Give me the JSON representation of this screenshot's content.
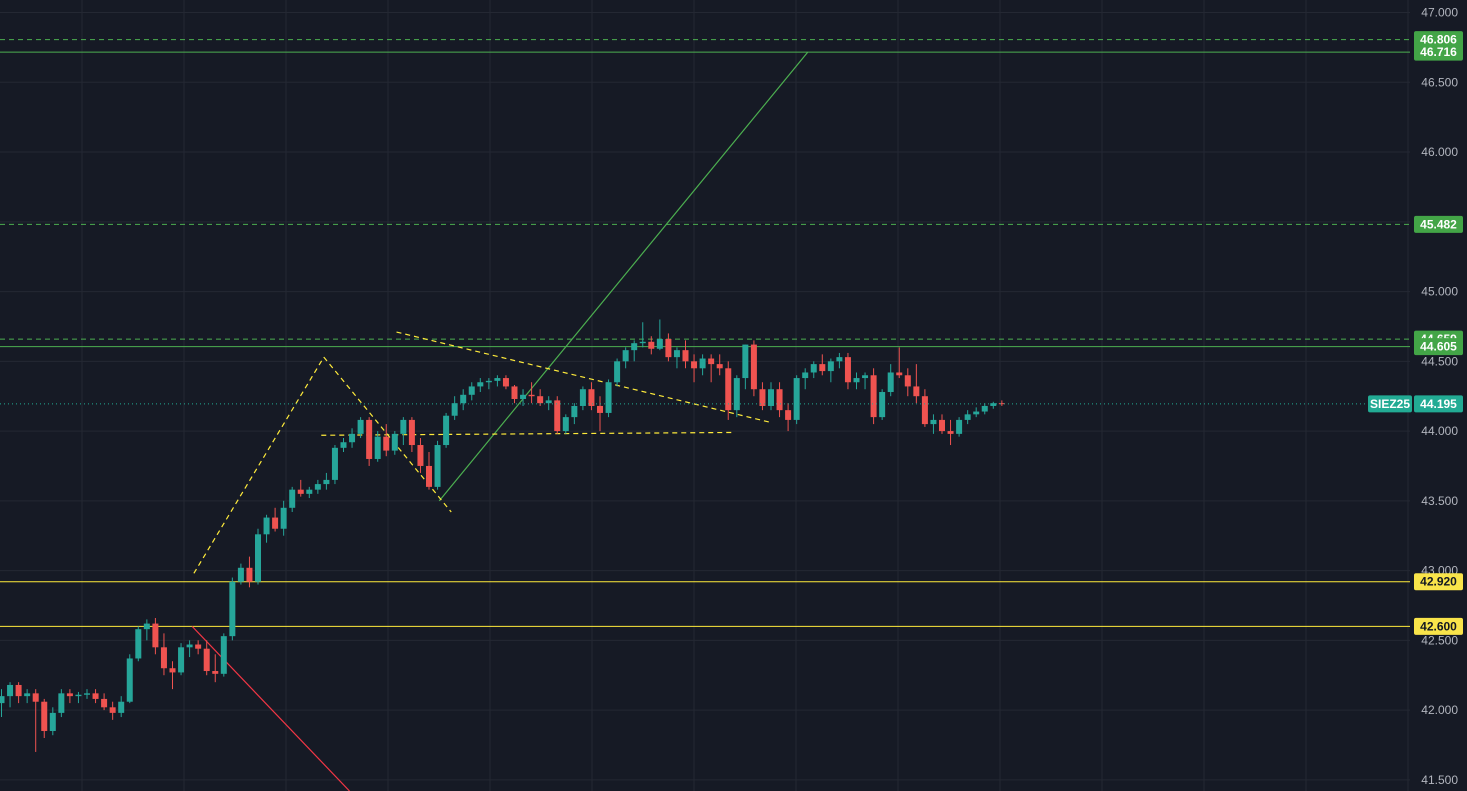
{
  "chart_data": {
    "type": "candlestick",
    "symbol": "SIEZ25",
    "last_price": 44195,
    "last_price_label": "44.195",
    "ylim": [
      41420,
      47090
    ],
    "grid": true,
    "colors": {
      "background": "#161a25",
      "grid": "#242833",
      "up": "#26a69a",
      "down": "#ef5350",
      "green_line": "#4caf50",
      "yellow_line": "#ffeb3b",
      "red_line": "#f23645",
      "price_badge": "#22ab94",
      "axis_text": "#b2b5be"
    },
    "y_ticks": [
      {
        "value": 47000,
        "label": "47.000"
      },
      {
        "value": 46500,
        "label": "46.500"
      },
      {
        "value": 46000,
        "label": "46.000"
      },
      {
        "value": 45500,
        "label": "45.500"
      },
      {
        "value": 45000,
        "label": "45.000"
      },
      {
        "value": 44500,
        "label": "44.500"
      },
      {
        "value": 44000,
        "label": "44.000"
      },
      {
        "value": 43500,
        "label": "43.500"
      },
      {
        "value": 43000,
        "label": "43.000"
      },
      {
        "value": 42500,
        "label": "42.500"
      },
      {
        "value": 42000,
        "label": "42.000"
      },
      {
        "value": 41500,
        "label": "41.500"
      }
    ],
    "levels": [
      {
        "value": 46806,
        "label": "46.806",
        "color": "green",
        "style": "dashed"
      },
      {
        "value": 46716,
        "label": "46.716",
        "color": "green",
        "style": "solid"
      },
      {
        "value": 45482,
        "label": "45.482",
        "color": "green",
        "style": "dashed"
      },
      {
        "value": 44659,
        "label": "44.659",
        "color": "green",
        "style": "dashed"
      },
      {
        "value": 44605,
        "label": "44.605",
        "color": "green",
        "style": "solid"
      },
      {
        "value": 42920,
        "label": "42.920",
        "color": "yellow",
        "style": "solid"
      },
      {
        "value": 42600,
        "label": "42.600",
        "color": "yellow",
        "style": "solid"
      }
    ],
    "trendlines": [
      {
        "color": "green",
        "style": "solid",
        "from": [
          51.2,
          43500
        ],
        "to": [
          94.3,
          46716
        ]
      },
      {
        "color": "yellow",
        "style": "dashed",
        "from": [
          22.5,
          42980
        ],
        "to": [
          37.7,
          44530
        ]
      },
      {
        "color": "yellow",
        "style": "dashed",
        "from": [
          37.7,
          44530
        ],
        "to": [
          52.6,
          43420
        ]
      },
      {
        "color": "yellow",
        "style": "dashed",
        "from": [
          46.2,
          44710
        ],
        "to": [
          90.1,
          44060
        ]
      },
      {
        "color": "yellow",
        "style": "dashed",
        "from": [
          37.4,
          43970
        ],
        "to": [
          85.6,
          43990
        ]
      },
      {
        "color": "red",
        "style": "solid",
        "from": [
          22.3,
          42600
        ],
        "to": [
          40.7,
          41420
        ]
      }
    ],
    "candles": [
      [
        42050,
        42150,
        41950,
        42100
      ],
      [
        42100,
        42200,
        42020,
        42180
      ],
      [
        42180,
        42200,
        42050,
        42100
      ],
      [
        42100,
        42150,
        42050,
        42120
      ],
      [
        42120,
        42150,
        41700,
        42060
      ],
      [
        42060,
        42080,
        41800,
        41850
      ],
      [
        41850,
        42020,
        41820,
        41980
      ],
      [
        41980,
        42150,
        41950,
        42120
      ],
      [
        42120,
        42150,
        42050,
        42100
      ],
      [
        42100,
        42130,
        42050,
        42110
      ],
      [
        42110,
        42150,
        42080,
        42120
      ],
      [
        42120,
        42150,
        42050,
        42080
      ],
      [
        42080,
        42120,
        42000,
        42020
      ],
      [
        42020,
        42060,
        41930,
        41980
      ],
      [
        41980,
        42100,
        41950,
        42060
      ],
      [
        42060,
        42400,
        42050,
        42370
      ],
      [
        42370,
        42600,
        42350,
        42580
      ],
      [
        42580,
        42650,
        42500,
        42620
      ],
      [
        42620,
        42660,
        42400,
        42450
      ],
      [
        42450,
        42550,
        42250,
        42300
      ],
      [
        42300,
        42350,
        42150,
        42270
      ],
      [
        42270,
        42480,
        42250,
        42450
      ],
      [
        42450,
        42500,
        42380,
        42470
      ],
      [
        42470,
        42500,
        42400,
        42440
      ],
      [
        42440,
        42500,
        42250,
        42280
      ],
      [
        42280,
        42400,
        42200,
        42260
      ],
      [
        42260,
        42550,
        42240,
        42530
      ],
      [
        42530,
        42950,
        42500,
        42920
      ],
      [
        42920,
        43050,
        42900,
        43020
      ],
      [
        43020,
        43100,
        42880,
        42920
      ],
      [
        42920,
        43300,
        42900,
        43260
      ],
      [
        43260,
        43400,
        43200,
        43380
      ],
      [
        43380,
        43450,
        43280,
        43300
      ],
      [
        43300,
        43500,
        43250,
        43450
      ],
      [
        43450,
        43600,
        43420,
        43580
      ],
      [
        43580,
        43650,
        43530,
        43550
      ],
      [
        43550,
        43600,
        43520,
        43580
      ],
      [
        43580,
        43650,
        43550,
        43620
      ],
      [
        43620,
        43700,
        43580,
        43650
      ],
      [
        43650,
        43900,
        43620,
        43880
      ],
      [
        43880,
        43950,
        43850,
        43920
      ],
      [
        43920,
        44020,
        43880,
        43980
      ],
      [
        43980,
        44100,
        43950,
        44080
      ],
      [
        44080,
        44100,
        43750,
        43800
      ],
      [
        43800,
        44000,
        43780,
        43960
      ],
      [
        43960,
        44050,
        43820,
        43860
      ],
      [
        43860,
        44000,
        43830,
        43980
      ],
      [
        43980,
        44100,
        43900,
        44080
      ],
      [
        44080,
        44100,
        43850,
        43900
      ],
      [
        43900,
        43950,
        43700,
        43750
      ],
      [
        43750,
        43850,
        43580,
        43600
      ],
      [
        43600,
        43930,
        43580,
        43900
      ],
      [
        43900,
        44130,
        43880,
        44110
      ],
      [
        44110,
        44250,
        44080,
        44200
      ],
      [
        44200,
        44300,
        44150,
        44260
      ],
      [
        44260,
        44350,
        44220,
        44320
      ],
      [
        44320,
        44380,
        44280,
        44350
      ],
      [
        44350,
        44380,
        44300,
        44360
      ],
      [
        44360,
        44400,
        44320,
        44380
      ],
      [
        44380,
        44400,
        44300,
        44320
      ],
      [
        44320,
        44330,
        44200,
        44230
      ],
      [
        44230,
        44300,
        44180,
        44260
      ],
      [
        44260,
        44350,
        44200,
        44250
      ],
      [
        44250,
        44300,
        44180,
        44200
      ],
      [
        44200,
        44250,
        44150,
        44220
      ],
      [
        44220,
        44250,
        43980,
        44000
      ],
      [
        44000,
        44120,
        43980,
        44100
      ],
      [
        44100,
        44200,
        44050,
        44180
      ],
      [
        44180,
        44320,
        44150,
        44300
      ],
      [
        44300,
        44350,
        44150,
        44180
      ],
      [
        44180,
        44250,
        44000,
        44130
      ],
      [
        44130,
        44370,
        44100,
        44350
      ],
      [
        44350,
        44520,
        44320,
        44500
      ],
      [
        44500,
        44600,
        44450,
        44580
      ],
      [
        44580,
        44650,
        44500,
        44630
      ],
      [
        44630,
        44780,
        44600,
        44640
      ],
      [
        44640,
        44680,
        44550,
        44590
      ],
      [
        44590,
        44800,
        44580,
        44660
      ],
      [
        44660,
        44700,
        44500,
        44530
      ],
      [
        44530,
        44600,
        44450,
        44580
      ],
      [
        44580,
        44650,
        44450,
        44500
      ],
      [
        44500,
        44550,
        44350,
        44450
      ],
      [
        44450,
        44550,
        44400,
        44520
      ],
      [
        44520,
        44550,
        44350,
        44480
      ],
      [
        44480,
        44550,
        44400,
        44450
      ],
      [
        44450,
        44500,
        44080,
        44150
      ],
      [
        44150,
        44400,
        44100,
        44380
      ],
      [
        44380,
        44620,
        44300,
        44620
      ],
      [
        44620,
        44650,
        44250,
        44300
      ],
      [
        44300,
        44350,
        44150,
        44180
      ],
      [
        44180,
        44350,
        44150,
        44300
      ],
      [
        44300,
        44350,
        44100,
        44150
      ],
      [
        44150,
        44200,
        44000,
        44080
      ],
      [
        44080,
        44400,
        44050,
        44380
      ],
      [
        44380,
        44450,
        44300,
        44420
      ],
      [
        44420,
        44500,
        44380,
        44480
      ],
      [
        44480,
        44550,
        44400,
        44430
      ],
      [
        44430,
        44520,
        44350,
        44500
      ],
      [
        44500,
        44560,
        44450,
        44530
      ],
      [
        44530,
        44560,
        44300,
        44350
      ],
      [
        44350,
        44420,
        44300,
        44380
      ],
      [
        44380,
        44420,
        44300,
        44400
      ],
      [
        44400,
        44450,
        44050,
        44100
      ],
      [
        44100,
        44300,
        44080,
        44280
      ],
      [
        44280,
        44480,
        44250,
        44420
      ],
      [
        44420,
        44600,
        44380,
        44400
      ],
      [
        44400,
        44450,
        44250,
        44320
      ],
      [
        44320,
        44480,
        44200,
        44250
      ],
      [
        44250,
        44300,
        44030,
        44050
      ],
      [
        44050,
        44120,
        43980,
        44080
      ],
      [
        44080,
        44120,
        43980,
        44000
      ],
      [
        44000,
        44080,
        43900,
        43980
      ],
      [
        43980,
        44100,
        43960,
        44080
      ],
      [
        44080,
        44150,
        44050,
        44120
      ],
      [
        44120,
        44170,
        44100,
        44140
      ],
      [
        44140,
        44200,
        44120,
        44180
      ],
      [
        44180,
        44210,
        44160,
        44200
      ],
      [
        44200,
        44220,
        44180,
        44195
      ]
    ]
  }
}
